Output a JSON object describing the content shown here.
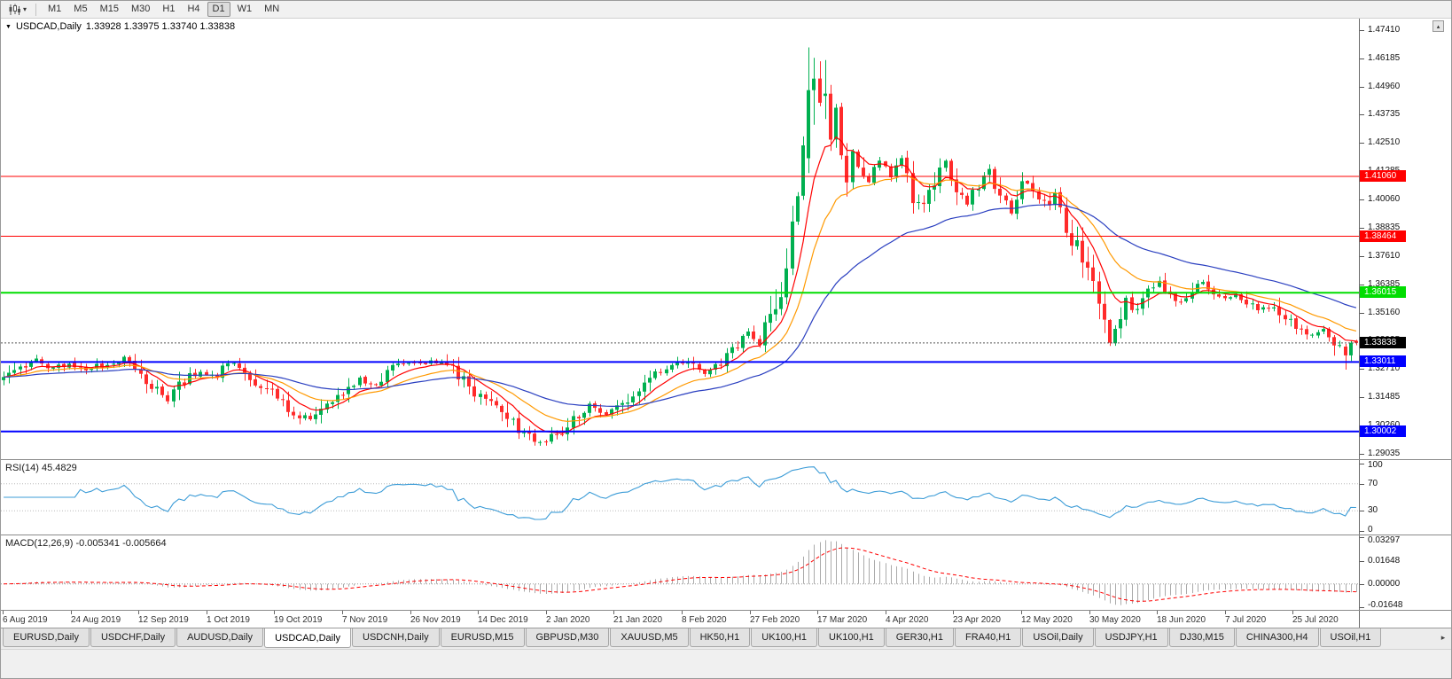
{
  "toolbar": {
    "chart_type_icon": "candlestick-chart-icon",
    "chart_type_caret_icon": "caret-down-icon",
    "timeframes": [
      {
        "label": "M1",
        "active": false
      },
      {
        "label": "M5",
        "active": false
      },
      {
        "label": "M15",
        "active": false
      },
      {
        "label": "M30",
        "active": false
      },
      {
        "label": "H1",
        "active": false
      },
      {
        "label": "H4",
        "active": false
      },
      {
        "label": "D1",
        "active": true
      },
      {
        "label": "W1",
        "active": false
      },
      {
        "label": "MN",
        "active": false
      }
    ]
  },
  "chart_data": {
    "type": "candlestick",
    "symbol": "USDCAD,Daily",
    "ohlc_display": "1.33928 1.33975 1.33740 1.33838",
    "colors": {
      "up": "#00B050",
      "down": "#FF2B2B",
      "bid_line": "#555555"
    },
    "price_scale": {
      "min": 1.288,
      "max": 1.479,
      "ticks": [
        "1.47410",
        "1.46185",
        "1.44960",
        "1.43735",
        "1.42510",
        "1.41285",
        "1.40060",
        "1.38835",
        "1.37610",
        "1.36385",
        "1.35160",
        "1.33935",
        "1.32710",
        "1.31485",
        "1.30260",
        "1.29035"
      ]
    },
    "levels": [
      {
        "price": 1.4106,
        "label": "1.41060",
        "color": "#FF0000",
        "thickness": 1
      },
      {
        "price": 1.38464,
        "label": "1.38464",
        "color": "#FF0000",
        "thickness": 1
      },
      {
        "price": 1.36015,
        "label": "1.36015",
        "color": "#00DD00",
        "thickness": 2
      },
      {
        "price": 1.33011,
        "label": "1.33011",
        "color": "#0000FF",
        "thickness": 2
      },
      {
        "price": 1.30002,
        "label": "1.30002",
        "color": "#0000FF",
        "thickness": 2
      }
    ],
    "bid": {
      "price": 1.33838,
      "label": "1.33838",
      "badge": "#000000"
    },
    "candles": {
      "count": 248,
      "anchors": [
        [
          0,
          1.3225
        ],
        [
          3,
          1.328
        ],
        [
          6,
          1.331
        ],
        [
          9,
          1.327
        ],
        [
          12,
          1.33
        ],
        [
          15,
          1.326
        ],
        [
          18,
          1.329
        ],
        [
          22,
          1.331
        ],
        [
          25,
          1.323
        ],
        [
          28,
          1.318
        ],
        [
          30,
          1.3135
        ],
        [
          33,
          1.3225
        ],
        [
          36,
          1.326
        ],
        [
          39,
          1.324
        ],
        [
          41,
          1.331
        ],
        [
          44,
          1.327
        ],
        [
          47,
          1.32
        ],
        [
          50,
          1.314
        ],
        [
          53,
          1.308
        ],
        [
          56,
          1.3055
        ],
        [
          59,
          1.312
        ],
        [
          62,
          1.3165
        ],
        [
          65,
          1.323
        ],
        [
          68,
          1.319
        ],
        [
          71,
          1.327
        ],
        [
          74,
          1.33
        ],
        [
          77,
          1.329
        ],
        [
          80,
          1.331
        ],
        [
          83,
          1.325
        ],
        [
          86,
          1.317
        ],
        [
          89,
          1.312
        ],
        [
          92,
          1.306
        ],
        [
          95,
          1.299
        ],
        [
          98,
          1.2955
        ],
        [
          101,
          1.2985
        ],
        [
          104,
          1.305
        ],
        [
          107,
          1.311
        ],
        [
          110,
          1.308
        ],
        [
          113,
          1.312
        ],
        [
          116,
          1.319
        ],
        [
          119,
          1.325
        ],
        [
          122,
          1.329
        ],
        [
          125,
          1.331
        ],
        [
          128,
          1.326
        ],
        [
          131,
          1.328
        ],
        [
          134,
          1.338
        ],
        [
          136,
          1.343
        ],
        [
          138,
          1.339
        ],
        [
          140,
          1.349
        ],
        [
          142,
          1.362
        ],
        [
          143,
          1.374
        ],
        [
          144,
          1.392
        ],
        [
          145,
          1.405
        ],
        [
          146,
          1.428
        ],
        [
          147,
          1.448
        ],
        [
          148,
          1.453
        ],
        [
          149,
          1.444
        ],
        [
          150,
          1.446
        ],
        [
          151,
          1.428
        ],
        [
          152,
          1.436
        ],
        [
          153,
          1.418
        ],
        [
          154,
          1.408
        ],
        [
          155,
          1.423
        ],
        [
          156,
          1.415
        ],
        [
          158,
          1.409
        ],
        [
          160,
          1.418
        ],
        [
          162,
          1.411
        ],
        [
          164,
          1.416
        ],
        [
          166,
          1.402
        ],
        [
          168,
          1.398
        ],
        [
          170,
          1.409
        ],
        [
          172,
          1.416
        ],
        [
          174,
          1.406
        ],
        [
          176,
          1.399
        ],
        [
          178,
          1.408
        ],
        [
          180,
          1.413
        ],
        [
          182,
          1.403
        ],
        [
          184,
          1.395
        ],
        [
          186,
          1.41
        ],
        [
          188,
          1.406
        ],
        [
          190,
          1.399
        ],
        [
          192,
          1.401
        ],
        [
          194,
          1.39
        ],
        [
          196,
          1.379
        ],
        [
          198,
          1.372
        ],
        [
          200,
          1.351
        ],
        [
          201,
          1.345
        ],
        [
          202,
          1.339
        ],
        [
          203,
          1.342
        ],
        [
          205,
          1.356
        ],
        [
          207,
          1.353
        ],
        [
          209,
          1.36
        ],
        [
          211,
          1.365
        ],
        [
          213,
          1.358
        ],
        [
          215,
          1.355
        ],
        [
          217,
          1.362
        ],
        [
          219,
          1.364
        ],
        [
          221,
          1.359
        ],
        [
          223,
          1.357
        ],
        [
          225,
          1.36
        ],
        [
          227,
          1.356
        ],
        [
          229,
          1.353
        ],
        [
          231,
          1.355
        ],
        [
          233,
          1.35
        ],
        [
          235,
          1.347
        ],
        [
          237,
          1.344
        ],
        [
          239,
          1.3415
        ],
        [
          241,
          1.344
        ],
        [
          243,
          1.34
        ],
        [
          244,
          1.337
        ],
        [
          245,
          1.333
        ],
        [
          246,
          1.3385
        ],
        [
          247,
          1.33838
        ]
      ],
      "overrides": [
        {
          "i": 147,
          "o": 1.4185,
          "h": 1.4665,
          "l": 1.412,
          "c": 1.448
        },
        {
          "i": 148,
          "o": 1.448,
          "h": 1.462,
          "l": 1.433,
          "c": 1.453
        },
        {
          "i": 150,
          "o": 1.4455,
          "h": 1.461,
          "l": 1.4355,
          "c": 1.4465
        },
        {
          "i": 245,
          "o": 1.3368,
          "h": 1.338,
          "l": 1.3268,
          "c": 1.333
        },
        {
          "i": 246,
          "o": 1.333,
          "h": 1.3392,
          "l": 1.3306,
          "c": 1.3385
        },
        {
          "i": 247,
          "o": 1.33928,
          "h": 1.33975,
          "l": 1.3374,
          "c": 1.33838
        }
      ]
    },
    "moving_averages": [
      {
        "period": 8,
        "color": "#FF0000"
      },
      {
        "period": 18,
        "color": "#FF9900"
      },
      {
        "period": 45,
        "color": "#2A3FC0"
      }
    ],
    "indicators": {
      "rsi": {
        "label": "RSI(14) 45.4829",
        "period": 14,
        "color": "#3C9CD7",
        "levels": [
          70,
          30
        ],
        "scale_ticks": [
          {
            "v": 100,
            "label": "100"
          },
          {
            "v": 70,
            "label": "70"
          },
          {
            "v": 30,
            "label": "30"
          },
          {
            "v": 0,
            "label": "0"
          }
        ]
      },
      "macd": {
        "label": "MACD(12,26,9) -0.005341 -0.005664",
        "fast": 12,
        "slow": 26,
        "signal": 9,
        "hist_color": "#AAAAAA",
        "signal_color": "#FF0000",
        "scale": {
          "min": -0.0185,
          "max": 0.0345
        },
        "scale_ticks": [
          {
            "v": 0.03297,
            "label": "0.03297"
          },
          {
            "v": 0.01648,
            "label": "0.01648"
          },
          {
            "v": 0,
            "label": "0.00000"
          },
          {
            "v": -0.01648,
            "label": "-0.01648"
          }
        ]
      }
    }
  },
  "time_axis": {
    "labels": [
      "6 Aug 2019",
      "24 Aug 2019",
      "12 Sep 2019",
      "1 Oct 2019",
      "19 Oct 2019",
      "7 Nov 2019",
      "26 Nov 2019",
      "14 Dec 2019",
      "2 Jan 2020",
      "21 Jan 2020",
      "8 Feb 2020",
      "27 Feb 2020",
      "17 Mar 2020",
      "4 Apr 2020",
      "23 Apr 2020",
      "12 May 2020",
      "30 May 2020",
      "18 Jun 2020",
      "7 Jul 2020",
      "25 Jul 2020"
    ]
  },
  "tabs": {
    "scroll_right_icon": "chevron-right-icon",
    "items": [
      {
        "label": "EURUSD,Daily",
        "active": false
      },
      {
        "label": "USDCHF,Daily",
        "active": false
      },
      {
        "label": "AUDUSD,Daily",
        "active": false
      },
      {
        "label": "USDCAD,Daily",
        "active": true
      },
      {
        "label": "USDCNH,Daily",
        "active": false
      },
      {
        "label": "EURUSD,M15",
        "active": false
      },
      {
        "label": "GBPUSD,M30",
        "active": false
      },
      {
        "label": "XAUUSD,M5",
        "active": false
      },
      {
        "label": "HK50,H1",
        "active": false
      },
      {
        "label": "UK100,H1",
        "active": false
      },
      {
        "label": "UK100,H1",
        "active": false
      },
      {
        "label": "GER30,H1",
        "active": false
      },
      {
        "label": "FRA40,H1",
        "active": false
      },
      {
        "label": "USOil,Daily",
        "active": false
      },
      {
        "label": "USDJPY,H1",
        "active": false
      },
      {
        "label": "DJ30,M15",
        "active": false
      },
      {
        "label": "CHINA300,H4",
        "active": false
      },
      {
        "label": "USOil,H1",
        "active": false
      }
    ]
  }
}
